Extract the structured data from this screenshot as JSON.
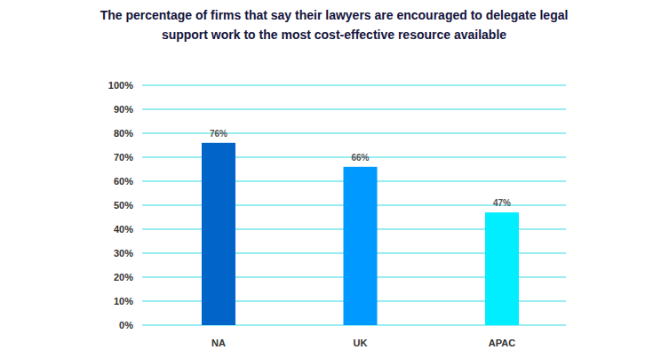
{
  "chart_data": {
    "type": "bar",
    "title": "The percentage of firms that say their lawyers are encouraged to delegate legal support work to the most cost-effective resource available",
    "categories": [
      "NA",
      "UK",
      "APAC"
    ],
    "values": [
      76,
      66,
      47
    ],
    "value_labels": [
      "76%",
      "66%",
      "47%"
    ],
    "colors": [
      "#0064c8",
      "#0099ff",
      "#00eeff"
    ],
    "ylim": [
      0,
      100
    ],
    "yticks": [
      {
        "value": 0,
        "label": "0%"
      },
      {
        "value": 10,
        "label": "10%"
      },
      {
        "value": 20,
        "label": "20%"
      },
      {
        "value": 30,
        "label": "30%"
      },
      {
        "value": 40,
        "label": "40%"
      },
      {
        "value": 50,
        "label": "50%"
      },
      {
        "value": 60,
        "label": "60%"
      },
      {
        "value": 70,
        "label": "70%"
      },
      {
        "value": 80,
        "label": "80%"
      },
      {
        "value": 90,
        "label": "90%"
      },
      {
        "value": 100,
        "label": "100%"
      }
    ],
    "grid": true,
    "data_labels": true
  }
}
